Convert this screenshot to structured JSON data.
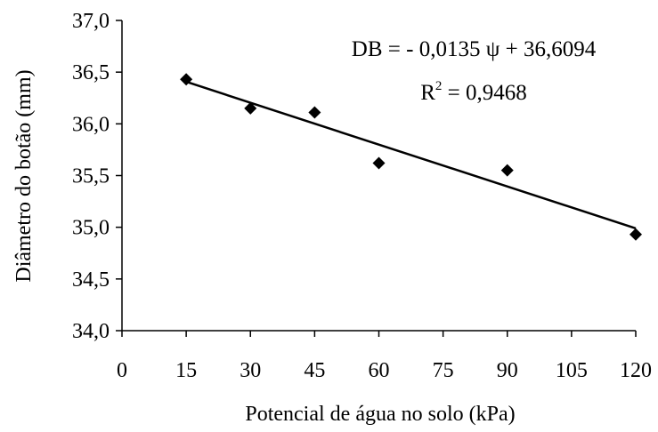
{
  "chart_data": {
    "type": "scatter",
    "title": "",
    "xlabel": "Potencial de água no solo (kPa)",
    "ylabel": "Diâmetro do botão (mm)",
    "xlim": [
      0,
      120
    ],
    "ylim": [
      34.0,
      37.0
    ],
    "x_ticks": [
      0,
      15,
      30,
      45,
      60,
      75,
      90,
      105,
      120
    ],
    "y_ticks": [
      34.0,
      34.5,
      35.0,
      35.5,
      36.0,
      36.5,
      37.0
    ],
    "x_tick_labels": [
      "0",
      "15",
      "30",
      "45",
      "60",
      "75",
      "90",
      "105",
      "120"
    ],
    "y_tick_labels": [
      "34,0",
      "34,5",
      "35,0",
      "35,5",
      "36,0",
      "36,5",
      "37,0"
    ],
    "grid": false,
    "marker": "diamond",
    "series": [
      {
        "x": [
          15,
          30,
          45,
          60,
          90,
          120
        ],
        "y": [
          36.43,
          36.15,
          36.11,
          35.62,
          35.55,
          34.93
        ]
      }
    ],
    "trendline": {
      "type": "linear",
      "slope": -0.0135,
      "intercept": 36.6094,
      "x_range": [
        15,
        120
      ]
    },
    "annotations": {
      "equation": "DB = - 0,0135 ψ + 36,6094",
      "r2_prefix": "R",
      "r2_exponent": "2",
      "r2_value": " = 0,9468"
    },
    "colors": {
      "marker": "#000000",
      "line": "#000000"
    }
  }
}
